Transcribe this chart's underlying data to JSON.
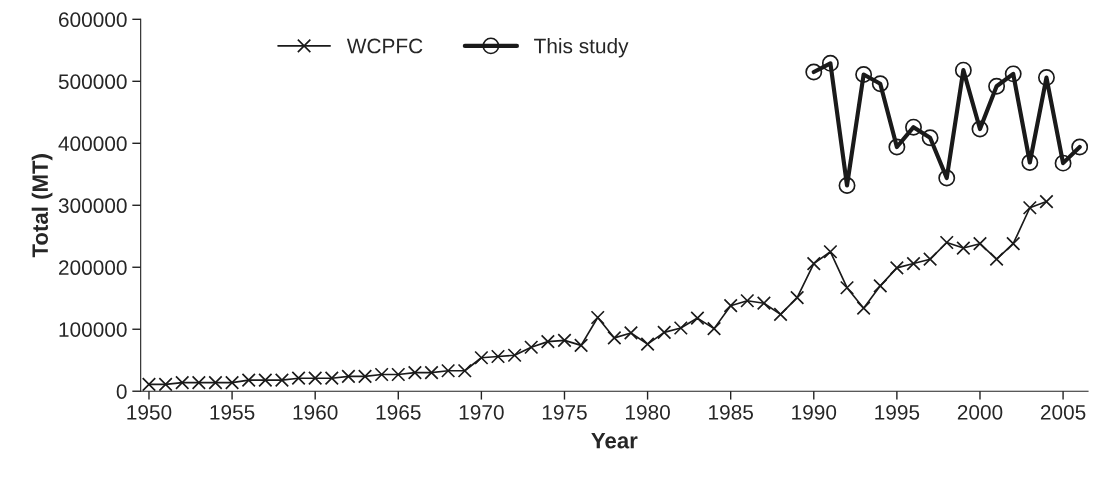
{
  "chart_data": {
    "type": "line",
    "xlabel": "Year",
    "ylabel": "Total (MT)",
    "xlim": [
      1949.5,
      2006.5
    ],
    "xticks": [
      1950,
      1955,
      1960,
      1965,
      1970,
      1975,
      1980,
      1985,
      1990,
      1995,
      2000,
      2005
    ],
    "ylim": [
      0,
      600000
    ],
    "yticks": [
      0,
      100000,
      200000,
      300000,
      400000,
      500000,
      600000
    ],
    "grid": false,
    "legend": "top",
    "series": [
      {
        "name": "WCPFC",
        "color": "#1a1a1a",
        "marker": "cross",
        "x": [
          1950,
          1951,
          1952,
          1953,
          1954,
          1955,
          1956,
          1957,
          1958,
          1959,
          1960,
          1961,
          1962,
          1963,
          1964,
          1965,
          1966,
          1967,
          1968,
          1969,
          1970,
          1971,
          1972,
          1973,
          1974,
          1975,
          1976,
          1977,
          1978,
          1979,
          1980,
          1981,
          1982,
          1983,
          1984,
          1985,
          1986,
          1987,
          1988,
          1989,
          1990,
          1991,
          1992,
          1993,
          1994,
          1995,
          1996,
          1997,
          1998,
          1999,
          2000,
          2001,
          2002,
          2003,
          2004
        ],
        "values": [
          11000,
          11000,
          14000,
          14000,
          14000,
          14000,
          18000,
          18000,
          18000,
          21000,
          21000,
          21000,
          24000,
          24000,
          27000,
          27000,
          30000,
          30000,
          33000,
          33000,
          54000,
          56000,
          58000,
          71000,
          80000,
          82000,
          74000,
          119000,
          86000,
          94000,
          76000,
          95000,
          102000,
          118000,
          101000,
          138000,
          146000,
          142000,
          124000,
          151000,
          206000,
          225000,
          167000,
          134000,
          170000,
          199000,
          206000,
          213000,
          240000,
          231000,
          238000,
          213000,
          238000,
          296000,
          306000
        ]
      },
      {
        "name": "This study",
        "color": "#1a1a1a",
        "marker": "circle",
        "x": [
          1990,
          1991,
          1992,
          1993,
          1994,
          1995,
          1996,
          1997,
          1998,
          1999,
          2000,
          2001,
          2002,
          2003,
          2004,
          2005,
          2006
        ],
        "values": [
          515000,
          529000,
          332000,
          511000,
          496000,
          394000,
          426000,
          409000,
          344000,
          518000,
          423000,
          492000,
          512000,
          369000,
          506000,
          368000,
          394000
        ]
      }
    ]
  }
}
